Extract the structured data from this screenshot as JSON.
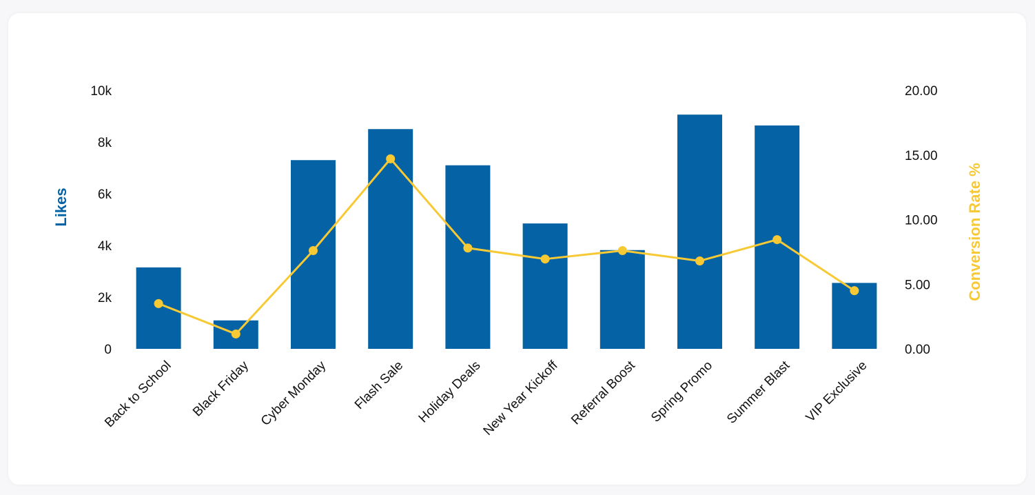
{
  "colors": {
    "bar": "#0562a4",
    "line": "#f7c934",
    "left_title": "#0562a4",
    "right_title": "#f7c934"
  },
  "chart_data": {
    "type": "bar",
    "categories": [
      "Back to School",
      "Black Friday",
      "Cyber Monday",
      "Flash Sale",
      "Holiday Deals",
      "New Year Kickoff",
      "Referral Boost",
      "Spring Promo",
      "Summer Blast",
      "VIP Exclusive"
    ],
    "series": [
      {
        "name": "Likes",
        "type": "bar",
        "axis": "left",
        "values": [
          3150,
          1100,
          7300,
          8500,
          7100,
          4850,
          3820,
          9060,
          8640,
          2550
        ]
      },
      {
        "name": "Conversion Rate %",
        "type": "line",
        "axis": "right",
        "values": [
          3.5,
          1.15,
          7.6,
          14.7,
          7.8,
          6.95,
          7.6,
          6.8,
          8.45,
          4.5
        ]
      }
    ],
    "ylabel": "Likes",
    "y2label": "Conversion Rate %",
    "ylim": [
      0,
      10000
    ],
    "y2lim": [
      0,
      20
    ],
    "yticks": [
      "0",
      "2k",
      "4k",
      "6k",
      "8k",
      "10k"
    ],
    "y2ticks": [
      "0.00",
      "5.00",
      "10.00",
      "15.00",
      "20.00"
    ],
    "grid": false
  }
}
